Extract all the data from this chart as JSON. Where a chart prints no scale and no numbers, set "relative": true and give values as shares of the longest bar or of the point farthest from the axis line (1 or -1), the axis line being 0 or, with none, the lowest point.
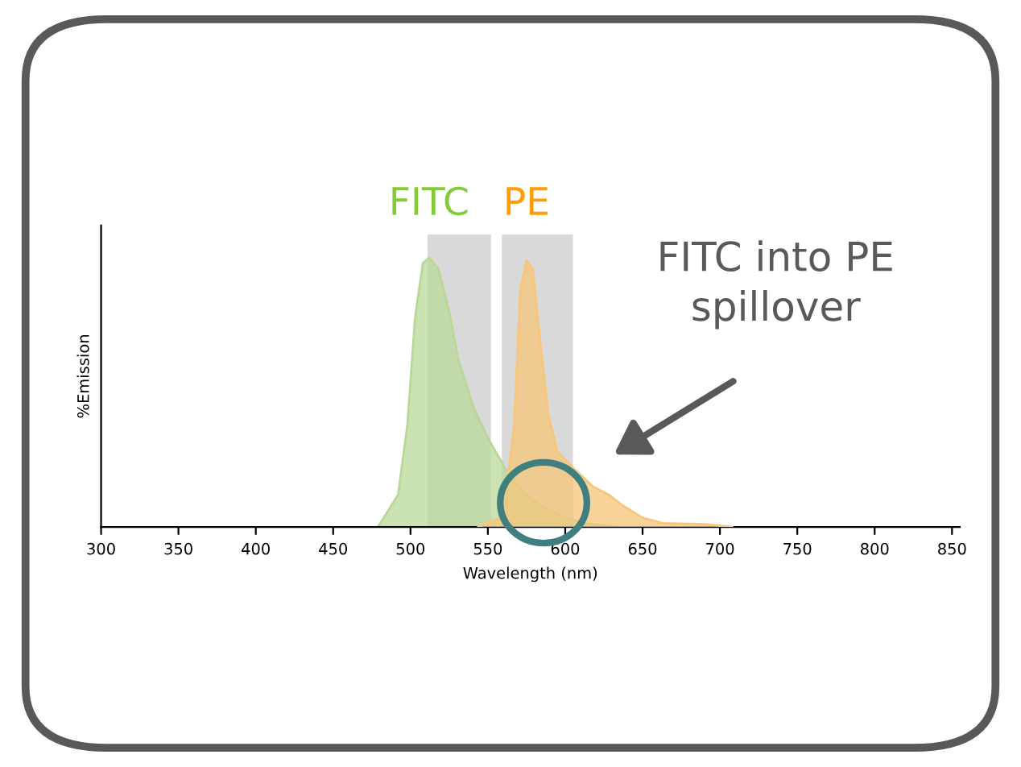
{
  "chart_data": {
    "type": "area",
    "relative": true,
    "xlabel": "Wavelength (nm)",
    "ylabel": "%Emission",
    "xlim": [
      300,
      855
    ],
    "xticks": [
      300,
      350,
      400,
      450,
      500,
      550,
      600,
      650,
      700,
      750,
      800,
      850
    ],
    "grid": false,
    "legend": false,
    "series": [
      {
        "name": "FITC",
        "color": "#b9d898",
        "x": [
          479,
          492,
          498,
          503,
          508,
          512,
          518,
          525,
          531,
          541,
          551,
          561,
          574,
          587,
          600,
          613,
          633
        ],
        "values": [
          0,
          0.12,
          0.38,
          0.78,
          0.98,
          1,
          0.96,
          0.8,
          0.62,
          0.44,
          0.32,
          0.22,
          0.12,
          0.07,
          0.034,
          0.014,
          0
        ]
      },
      {
        "name": "PE",
        "color": "#f6c67a",
        "x": [
          544,
          560,
          567,
          571,
          575,
          579,
          584,
          589,
          595,
          605,
          618,
          628,
          637,
          650,
          663,
          690,
          708
        ],
        "values": [
          0,
          0.04,
          0.38,
          0.88,
          0.99,
          0.96,
          0.68,
          0.42,
          0.28,
          0.22,
          0.15,
          0.12,
          0.08,
          0.034,
          0.014,
          0.01,
          0
        ]
      }
    ],
    "bands": [
      {
        "axis": "x",
        "from": 511,
        "to": 552,
        "color": "#d9d9d9"
      },
      {
        "axis": "x",
        "from": 559,
        "to": 605,
        "color": "#d9d9d9"
      }
    ],
    "annotations": [
      "FITC into PE\nspillover"
    ]
  }
}
